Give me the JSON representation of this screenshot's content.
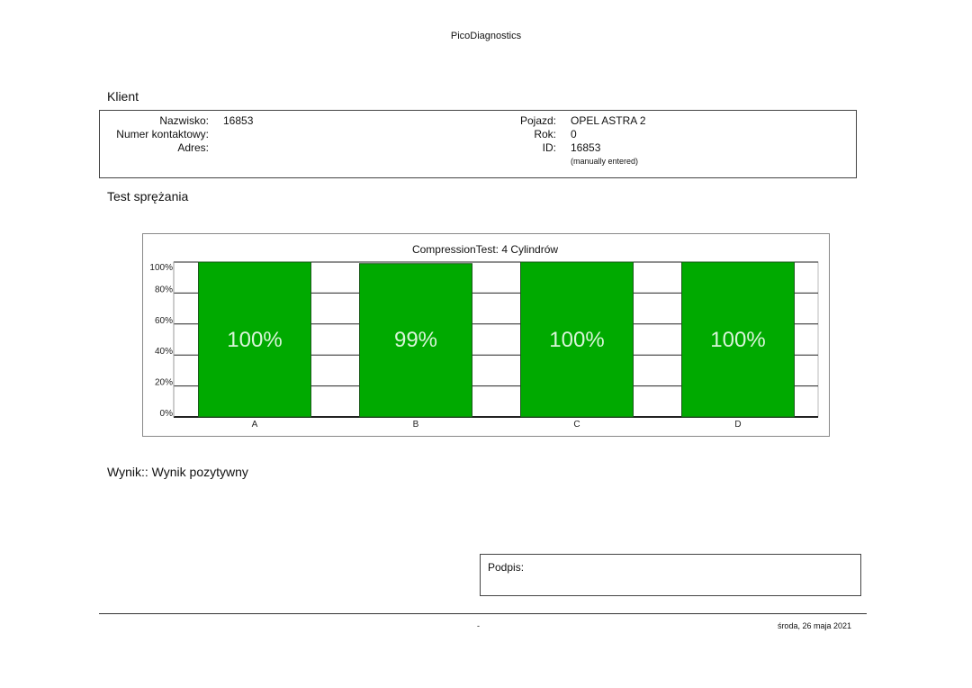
{
  "header": {
    "app_title": "PicoDiagnostics"
  },
  "client_section": {
    "title": "Klient",
    "fields": [
      {
        "label": "Nazwisko:",
        "value": "16853"
      },
      {
        "label": "Numer kontaktowy:",
        "value": ""
      },
      {
        "label": "Adres:",
        "value": ""
      }
    ],
    "vehicle_fields": [
      {
        "label": "Pojazd:",
        "value": "OPEL ASTRA 2"
      },
      {
        "label": "Rok:",
        "value": "0"
      },
      {
        "label": "ID:",
        "value": "16853"
      }
    ],
    "id_note": "(manually entered)"
  },
  "test_section": {
    "title": "Test sprężania"
  },
  "chart_data": {
    "type": "bar",
    "title": "CompressionTest: 4 Cylindrów",
    "categories": [
      "A",
      "B",
      "C",
      "D"
    ],
    "values": [
      100,
      99,
      100,
      100
    ],
    "data_labels": [
      "100%",
      "99%",
      "100%",
      "100%"
    ],
    "y_ticks": [
      "0%",
      "20%",
      "40%",
      "60%",
      "80%",
      "100%"
    ],
    "ylim": [
      0,
      100
    ],
    "grid": true,
    "bar_color": "#00aa00",
    "label_color": "#d8f5d8"
  },
  "result": {
    "text": "Wynik:: Wynik pozytywny"
  },
  "signature": {
    "label": "Podpis:"
  },
  "footer": {
    "page": "-",
    "date": "środa, 26 maja 2021"
  }
}
